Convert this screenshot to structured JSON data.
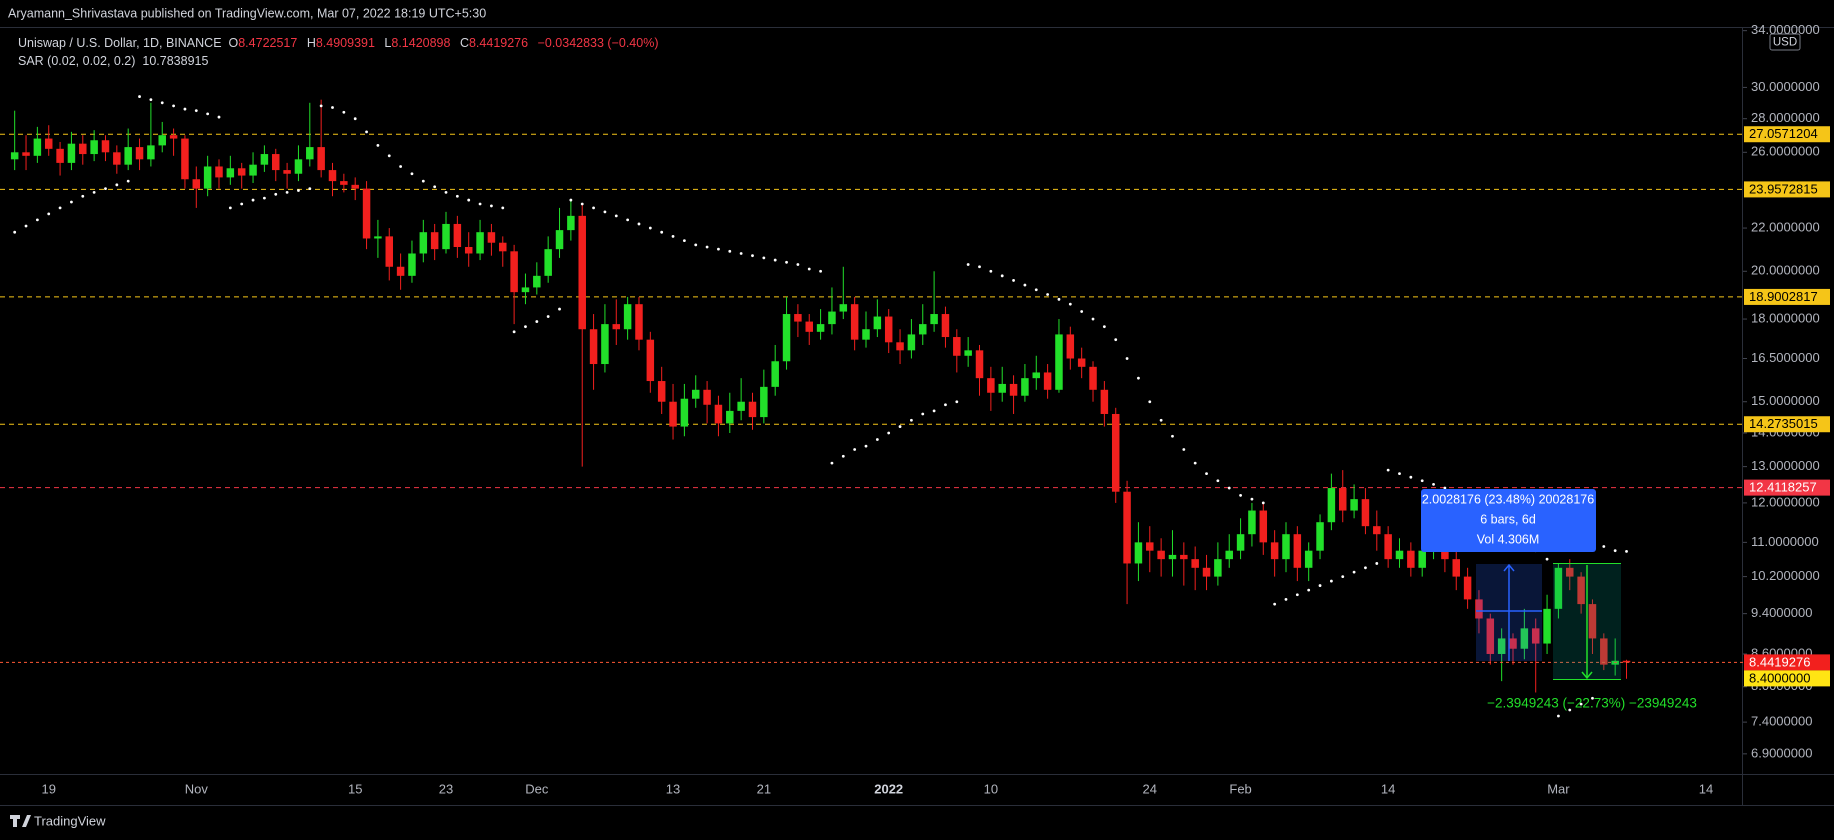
{
  "header": {
    "published": "Aryamann_Shrivastava published on TradingView.com, Mar 07, 2022 18:19 UTC+5:30"
  },
  "footer": {
    "brand": "TradingView"
  },
  "chart_data": {
    "type": "candlestick",
    "title": "Uniswap / U.S. Dollar, 1D, BINANCE",
    "ohlc_keys": [
      "O",
      "H",
      "L",
      "C"
    ],
    "change": "−0.0342833 (−0.40%)",
    "currency": "USD",
    "log_scale": true,
    "up_color": "#22e02a",
    "down_color": "#f2201e",
    "categories": [
      null,
      null,
      null,
      "19",
      null,
      null,
      null,
      null,
      null,
      null,
      null,
      null,
      null,
      null,
      null,
      null,
      "Nov",
      null,
      null,
      null,
      null,
      null,
      null,
      null,
      null,
      null,
      null,
      null,
      null,
      null,
      "15",
      null,
      null,
      null,
      null,
      null,
      null,
      null,
      "23",
      null,
      null,
      null,
      null,
      null,
      null,
      null,
      "Dec",
      null,
      null,
      null,
      null,
      null,
      null,
      null,
      null,
      null,
      null,
      null,
      "13",
      null,
      null,
      null,
      null,
      null,
      null,
      null,
      "21",
      null,
      null,
      null,
      null,
      null,
      null,
      null,
      null,
      null,
      null,
      "2022",
      null,
      null,
      null,
      null,
      null,
      null,
      null,
      null,
      "10",
      null,
      null,
      null,
      null,
      null,
      null,
      null,
      null,
      null,
      null,
      null,
      null,
      null,
      "24",
      null,
      null,
      null,
      null,
      null,
      null,
      null,
      "Feb",
      null,
      null,
      null,
      null,
      null,
      null,
      null,
      null,
      null,
      null,
      null,
      null,
      "14",
      null,
      null,
      null,
      null,
      null,
      null,
      null,
      null,
      null,
      null,
      null,
      null,
      null,
      null,
      "Mar",
      null,
      null,
      null,
      null,
      null,
      null,
      null,
      null,
      null,
      null,
      null,
      null,
      "14",
      null
    ],
    "open": [
      25.6,
      26.0,
      25.8,
      26.8,
      26.2,
      25.4,
      26.5,
      25.9,
      26.7,
      26.0,
      25.3,
      26.3,
      25.6,
      26.4,
      27.0,
      26.8,
      24.5,
      24.0,
      25.2,
      24.6,
      25.1,
      24.7,
      25.3,
      25.9,
      25.0,
      24.8,
      25.6,
      26.3,
      25.0,
      24.4,
      24.2,
      24.0,
      21.5,
      21.6,
      20.2,
      19.8,
      20.8,
      21.8,
      21.0,
      22.2,
      21.1,
      20.8,
      21.8,
      21.3,
      20.9,
      19.1,
      19.3,
      19.8,
      21.0,
      21.9,
      22.6,
      17.6,
      16.3,
      17.8,
      17.6,
      18.6,
      17.2,
      15.7,
      15.0,
      14.2,
      15.1,
      15.4,
      14.9,
      14.3,
      14.7,
      15.0,
      14.5,
      15.5,
      16.4,
      18.2,
      17.9,
      17.5,
      17.8,
      18.3,
      18.6,
      17.2,
      17.6,
      18.1,
      17.1,
      16.8,
      17.4,
      17.8,
      18.2,
      17.3,
      16.6,
      16.8,
      15.8,
      15.3,
      15.6,
      15.2,
      15.8,
      16.0,
      15.4,
      17.4,
      16.5,
      16.2,
      15.4,
      14.6,
      12.3,
      10.5,
      11.0,
      10.8,
      10.6,
      10.7,
      10.6,
      10.4,
      10.2,
      10.6,
      10.8,
      11.2,
      11.8,
      11.0,
      10.6,
      11.2,
      10.4,
      10.8,
      11.5,
      12.4,
      11.8,
      12.1,
      11.4,
      11.2,
      10.6,
      10.8,
      10.4,
      10.8,
      11.2,
      10.6,
      10.2,
      9.7,
      9.3,
      8.6,
      8.9,
      8.7,
      9.1,
      8.8,
      9.5,
      10.4,
      10.2,
      9.6,
      8.9,
      8.4,
      8.4722517,
      null,
      null,
      null,
      null,
      null,
      null,
      null,
      null
    ],
    "high": [
      28.5,
      27.0,
      27.5,
      27.6,
      26.6,
      27.2,
      27.0,
      27.3,
      27.0,
      26.4,
      27.4,
      26.8,
      29.0,
      27.8,
      27.4,
      27.0,
      25.2,
      25.8,
      25.6,
      25.8,
      25.4,
      26.0,
      26.4,
      26.2,
      25.4,
      26.4,
      29.0,
      29.2,
      25.4,
      24.8,
      24.6,
      24.4,
      22.4,
      22.0,
      20.8,
      21.4,
      22.4,
      22.2,
      22.8,
      22.6,
      21.8,
      22.4,
      22.2,
      21.6,
      21.2,
      19.9,
      20.4,
      21.6,
      23.0,
      23.4,
      23.2,
      18.2,
      18.6,
      18.8,
      18.9,
      18.9,
      17.5,
      16.2,
      15.6,
      15.6,
      15.9,
      15.7,
      15.2,
      15.3,
      15.8,
      15.3,
      16.1,
      17.0,
      18.9,
      18.6,
      18.2,
      18.4,
      19.3,
      20.2,
      18.9,
      18.3,
      18.8,
      18.4,
      17.6,
      18.0,
      18.6,
      20.0,
      18.5,
      17.6,
      17.3,
      17.0,
      16.2,
      16.2,
      15.9,
      16.3,
      16.6,
      16.3,
      18.0,
      17.7,
      16.9,
      16.4,
      15.7,
      14.8,
      12.6,
      11.5,
      11.4,
      11.1,
      11.3,
      11.0,
      10.9,
      10.7,
      11.0,
      11.2,
      11.6,
      12.0,
      12.0,
      11.3,
      11.5,
      11.4,
      11.0,
      11.7,
      12.8,
      12.9,
      12.5,
      12.4,
      11.8,
      11.4,
      11.1,
      11.0,
      11.2,
      11.4,
      11.3,
      10.8,
      10.4,
      9.9,
      9.4,
      9.1,
      9.0,
      9.5,
      9.3,
      9.8,
      10.5,
      10.6,
      10.3,
      9.7,
      9.0,
      8.9,
      8.4909391,
      null,
      null,
      null,
      null,
      null,
      null,
      null,
      null
    ],
    "low": [
      25.0,
      25.0,
      25.4,
      25.8,
      24.7,
      25.0,
      25.3,
      25.5,
      25.5,
      24.8,
      25.0,
      25.0,
      25.2,
      26.0,
      25.8,
      24.0,
      23.0,
      23.6,
      24.0,
      24.2,
      24.0,
      24.3,
      24.9,
      24.4,
      24.0,
      24.4,
      25.2,
      24.6,
      23.6,
      23.8,
      23.4,
      21.0,
      20.6,
      19.6,
      19.2,
      19.5,
      20.4,
      20.5,
      20.8,
      20.6,
      20.2,
      20.5,
      20.7,
      20.2,
      17.8,
      18.6,
      19.0,
      19.5,
      20.6,
      21.4,
      13.0,
      15.4,
      16.0,
      17.0,
      17.2,
      16.8,
      15.3,
      14.6,
      13.8,
      13.9,
      14.8,
      14.3,
      13.9,
      14.0,
      14.4,
      14.1,
      14.3,
      15.2,
      16.1,
      17.3,
      17.0,
      17.2,
      17.4,
      18.0,
      16.8,
      16.9,
      17.3,
      16.7,
      16.3,
      16.5,
      17.0,
      17.5,
      16.9,
      16.0,
      16.2,
      15.2,
      14.7,
      15.0,
      14.6,
      15.0,
      15.4,
      15.1,
      15.3,
      16.1,
      15.8,
      15.0,
      14.2,
      12.0,
      9.6,
      10.1,
      10.3,
      10.2,
      10.2,
      10.0,
      9.9,
      9.9,
      10.0,
      10.4,
      10.6,
      10.9,
      10.7,
      10.2,
      10.3,
      10.1,
      10.1,
      10.6,
      11.3,
      11.5,
      11.6,
      11.2,
      10.8,
      10.4,
      10.4,
      10.2,
      10.2,
      10.6,
      10.3,
      9.9,
      9.5,
      9.0,
      8.4,
      8.1,
      8.4,
      8.5,
      7.9,
      8.6,
      9.3,
      9.9,
      9.4,
      8.6,
      8.3,
      8.2,
      8.1420898,
      null,
      null,
      null,
      null,
      null,
      null,
      null,
      null
    ],
    "close": [
      26.0,
      25.8,
      26.8,
      26.2,
      25.4,
      26.5,
      25.9,
      26.7,
      26.0,
      25.3,
      26.3,
      25.6,
      26.4,
      27.0,
      26.8,
      24.5,
      24.0,
      25.2,
      24.6,
      25.1,
      24.7,
      25.3,
      25.9,
      25.0,
      24.8,
      25.6,
      26.3,
      25.0,
      24.4,
      24.2,
      24.0,
      21.5,
      21.6,
      20.2,
      19.8,
      20.8,
      21.8,
      21.0,
      22.2,
      21.1,
      20.8,
      21.8,
      21.3,
      20.9,
      19.1,
      19.3,
      19.8,
      21.0,
      21.9,
      22.6,
      17.6,
      16.3,
      17.8,
      17.6,
      18.6,
      17.2,
      15.7,
      15.0,
      14.2,
      15.1,
      15.4,
      14.9,
      14.3,
      14.7,
      15.0,
      14.5,
      15.5,
      16.4,
      18.2,
      17.9,
      17.5,
      17.8,
      18.3,
      18.6,
      17.2,
      17.6,
      18.1,
      17.1,
      16.8,
      17.4,
      17.8,
      18.2,
      17.3,
      16.6,
      16.8,
      15.8,
      15.3,
      15.6,
      15.2,
      15.8,
      16.0,
      15.4,
      17.4,
      16.5,
      16.2,
      15.4,
      14.6,
      12.3,
      10.5,
      11.0,
      10.8,
      10.6,
      10.7,
      10.6,
      10.4,
      10.2,
      10.6,
      10.8,
      11.2,
      11.8,
      11.0,
      10.6,
      11.2,
      10.4,
      10.8,
      11.5,
      12.4,
      11.8,
      12.1,
      11.4,
      11.2,
      10.6,
      10.8,
      10.4,
      10.8,
      11.2,
      10.6,
      10.2,
      9.7,
      9.3,
      8.6,
      8.9,
      8.7,
      9.1,
      8.8,
      9.5,
      10.4,
      10.2,
      9.6,
      8.9,
      8.4,
      8.4722517,
      8.4419276,
      null,
      null,
      null,
      null,
      null,
      null,
      null,
      null
    ],
    "indicator": {
      "name": "SAR (0.02, 0.02, 0.2)",
      "color": "#ffffff",
      "values": [
        21.8,
        22.1,
        22.4,
        22.7,
        23.0,
        23.3,
        23.6,
        23.8,
        24.0,
        24.2,
        24.4,
        29.4,
        29.2,
        29.0,
        28.8,
        28.6,
        28.5,
        28.3,
        28.1,
        23.0,
        23.2,
        23.4,
        23.5,
        23.7,
        23.8,
        23.9,
        24.0,
        28.8,
        28.7,
        28.4,
        28.0,
        27.2,
        26.4,
        25.8,
        25.2,
        24.8,
        24.4,
        24.1,
        23.8,
        23.6,
        23.4,
        23.2,
        23.1,
        23.0,
        17.5,
        17.7,
        17.9,
        18.1,
        18.4,
        23.4,
        23.2,
        23.0,
        22.8,
        22.6,
        22.4,
        22.2,
        22.0,
        21.8,
        21.6,
        21.4,
        21.2,
        21.1,
        21.0,
        20.9,
        20.8,
        20.7,
        20.6,
        20.5,
        20.4,
        20.3,
        20.1,
        20.0,
        13.1,
        13.3,
        13.5,
        13.6,
        13.8,
        14.0,
        14.2,
        14.4,
        14.6,
        14.7,
        14.9,
        15.0,
        20.3,
        20.2,
        20.0,
        19.8,
        19.6,
        19.4,
        19.2,
        19.0,
        18.8,
        18.6,
        18.3,
        18.0,
        17.7,
        17.2,
        16.5,
        15.8,
        15.0,
        14.4,
        13.9,
        13.5,
        13.1,
        12.8,
        12.6,
        12.4,
        12.2,
        12.1,
        12.0,
        9.6,
        9.7,
        9.8,
        9.9,
        10.0,
        10.1,
        10.2,
        10.3,
        10.4,
        10.5,
        12.9,
        12.8,
        12.7,
        12.6,
        12.5,
        12.4,
        12.3,
        12.2,
        12.0,
        11.8,
        11.5,
        11.2,
        11.0,
        10.8,
        10.6,
        7.5,
        7.6,
        7.7,
        7.8,
        10.9,
        10.8,
        10.7838915,
        null,
        null,
        null,
        null,
        null,
        null,
        null,
        null
      ]
    },
    "ylim": [
      6.6,
      34.2
    ],
    "yticks": [
      {
        "value": 34,
        "label": "34.0000000"
      },
      {
        "value": 30,
        "label": "30.0000000"
      },
      {
        "value": 28,
        "label": "28.0000000"
      },
      {
        "value": 26,
        "label": "26.0000000"
      },
      {
        "value": 22,
        "label": "22.0000000"
      },
      {
        "value": 20,
        "label": "20.0000000"
      },
      {
        "value": 18,
        "label": "18.0000000"
      },
      {
        "value": 16.5,
        "label": "16.5000000"
      },
      {
        "value": 15,
        "label": "15.0000000"
      },
      {
        "value": 14,
        "label": "14.0000000"
      },
      {
        "value": 13,
        "label": "13.0000000"
      },
      {
        "value": 12,
        "label": "12.0000000"
      },
      {
        "value": 11,
        "label": "11.0000000"
      },
      {
        "value": 10.2,
        "label": "10.2000000"
      },
      {
        "value": 9.4,
        "label": "9.4000000"
      },
      {
        "value": 8.6,
        "label": "8.6000000"
      },
      {
        "value": 8,
        "label": "8.0000000"
      },
      {
        "value": 7.4,
        "label": "7.4000000"
      },
      {
        "value": 6.9,
        "label": "6.9000000"
      }
    ],
    "levels": [
      27.0571204,
      23.9572815,
      18.9002817,
      14.2735015,
      12.4118257
    ],
    "level_colors": [
      "#f5c518",
      "#f5c518",
      "#f5c518",
      "#f5c518",
      "#f23645"
    ],
    "support": {
      "value": 8.4,
      "label": "8.4000000",
      "color": "#ffe414"
    },
    "measure": {
      "up": [
        "2.0028176 (23.48%) 20028176",
        "6 bars, 6d",
        "Vol 4.306M"
      ],
      "down": "−2.3949243 (−22.73%) −23949243"
    }
  }
}
